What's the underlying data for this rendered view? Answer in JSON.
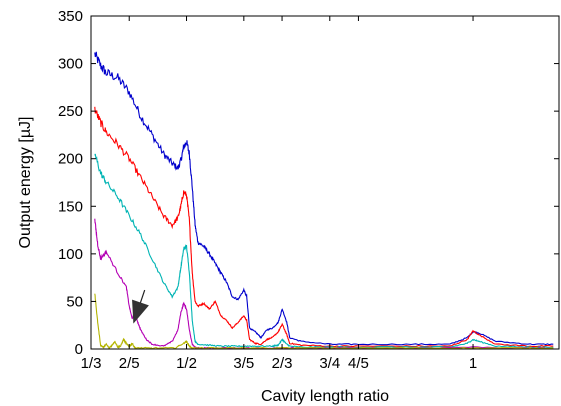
{
  "chart_data": {
    "type": "line",
    "xlabel": "Cavity length ratio",
    "ylabel": "Output energy [µJ]",
    "xlim": [
      0.3333,
      1.15
    ],
    "ylim": [
      0,
      350
    ],
    "grid": false,
    "legend": "none",
    "xticks": [
      {
        "value": 0.3333,
        "label": "1/3"
      },
      {
        "value": 0.4,
        "label": "2/5"
      },
      {
        "value": 0.5,
        "label": "1/2"
      },
      {
        "value": 0.6,
        "label": "3/5"
      },
      {
        "value": 0.6667,
        "label": "2/3"
      },
      {
        "value": 0.75,
        "label": "3/4"
      },
      {
        "value": 0.8,
        "label": "4/5"
      },
      {
        "value": 1.0,
        "label": "1"
      }
    ],
    "yticks": [
      {
        "value": 0,
        "label": "0"
      },
      {
        "value": 50,
        "label": "50"
      },
      {
        "value": 100,
        "label": "100"
      },
      {
        "value": 150,
        "label": "150"
      },
      {
        "value": 200,
        "label": "200"
      },
      {
        "value": 250,
        "label": "250"
      },
      {
        "value": 300,
        "label": "300"
      },
      {
        "value": 350,
        "label": "350"
      }
    ],
    "annotation": {
      "type": "arrow",
      "from": [
        0.427,
        62
      ],
      "to": [
        0.408,
        28
      ]
    },
    "series": [
      {
        "color": "#0000cc",
        "x": [
          0.34,
          0.35,
          0.36,
          0.38,
          0.4,
          0.42,
          0.44,
          0.46,
          0.475,
          0.485,
          0.49,
          0.495,
          0.5,
          0.505,
          0.51,
          0.515,
          0.52,
          0.53,
          0.54,
          0.55,
          0.56,
          0.57,
          0.58,
          0.59,
          0.6,
          0.605,
          0.61,
          0.62,
          0.63,
          0.64,
          0.65,
          0.66,
          0.667,
          0.675,
          0.68,
          0.7,
          0.75,
          0.8,
          0.9,
          0.96,
          0.99,
          1.0,
          1.01,
          1.04,
          1.1,
          1.14
        ],
        "y": [
          310,
          298,
          290,
          285,
          270,
          245,
          225,
          205,
          195,
          190,
          198,
          212,
          218,
          205,
          170,
          130,
          112,
          108,
          100,
          90,
          80,
          70,
          55,
          52,
          62,
          55,
          22,
          18,
          12,
          20,
          22,
          28,
          42,
          28,
          12,
          8,
          5,
          5,
          5,
          5,
          12,
          18,
          17,
          8,
          5,
          5
        ]
      },
      {
        "color": "#ff0000",
        "x": [
          0.34,
          0.35,
          0.36,
          0.38,
          0.4,
          0.42,
          0.44,
          0.46,
          0.475,
          0.485,
          0.49,
          0.495,
          0.5,
          0.505,
          0.51,
          0.515,
          0.52,
          0.53,
          0.54,
          0.55,
          0.56,
          0.57,
          0.58,
          0.59,
          0.6,
          0.605,
          0.61,
          0.62,
          0.63,
          0.64,
          0.65,
          0.66,
          0.667,
          0.675,
          0.68,
          0.7,
          0.75,
          0.8,
          0.9,
          0.96,
          0.99,
          1.0,
          1.01,
          1.04,
          1.1,
          1.14
        ],
        "y": [
          252,
          238,
          228,
          215,
          200,
          180,
          160,
          140,
          130,
          138,
          150,
          165,
          162,
          135,
          80,
          50,
          45,
          48,
          42,
          50,
          35,
          30,
          22,
          28,
          35,
          30,
          10,
          6,
          5,
          10,
          12,
          18,
          26,
          15,
          6,
          4,
          3,
          3,
          3,
          3,
          10,
          19,
          15,
          5,
          3,
          3
        ]
      },
      {
        "color": "#00b4b4",
        "x": [
          0.34,
          0.35,
          0.36,
          0.38,
          0.4,
          0.42,
          0.44,
          0.46,
          0.475,
          0.485,
          0.49,
          0.495,
          0.5,
          0.505,
          0.51,
          0.515,
          0.52,
          0.54,
          0.56,
          0.58,
          0.6,
          0.62,
          0.65,
          0.66,
          0.667,
          0.675,
          0.68,
          0.7,
          0.75,
          0.8,
          0.9,
          0.96,
          0.99,
          1.0,
          1.01,
          1.04,
          1.1,
          1.14
        ],
        "y": [
          205,
          185,
          175,
          160,
          140,
          120,
          95,
          70,
          55,
          65,
          85,
          105,
          108,
          80,
          30,
          8,
          5,
          4,
          3,
          3,
          3,
          3,
          3,
          4,
          10,
          5,
          3,
          2,
          2,
          2,
          2,
          2,
          6,
          10,
          8,
          3,
          2,
          2
        ]
      },
      {
        "color": "#b400b4",
        "x": [
          0.34,
          0.345,
          0.35,
          0.36,
          0.38,
          0.395,
          0.4,
          0.405,
          0.41,
          0.415,
          0.42,
          0.43,
          0.44,
          0.46,
          0.475,
          0.485,
          0.49,
          0.495,
          0.5,
          0.505,
          0.51,
          0.515,
          0.52,
          0.54,
          0.56,
          0.6,
          0.65,
          0.667,
          0.7,
          0.8,
          0.9,
          1.0,
          1.1,
          1.14
        ],
        "y": [
          135,
          110,
          95,
          102,
          80,
          65,
          45,
          32,
          38,
          28,
          20,
          10,
          5,
          3,
          8,
          20,
          38,
          48,
          42,
          20,
          5,
          2,
          1,
          1,
          1,
          1,
          1,
          1,
          1,
          1,
          1,
          2,
          1,
          1
        ]
      },
      {
        "color": "#b4b400",
        "x": [
          0.34,
          0.345,
          0.35,
          0.355,
          0.36,
          0.365,
          0.37,
          0.375,
          0.38,
          0.385,
          0.39,
          0.395,
          0.4,
          0.405,
          0.41,
          0.42,
          0.44,
          0.48,
          0.495,
          0.5,
          0.505,
          0.51,
          0.55,
          0.6,
          0.7,
          0.8,
          0.9,
          1.0,
          1.1,
          1.14
        ],
        "y": [
          58,
          28,
          4,
          2,
          5,
          1,
          4,
          8,
          2,
          3,
          10,
          6,
          2,
          6,
          1,
          1,
          1,
          1,
          6,
          8,
          3,
          1,
          1,
          1,
          1,
          1,
          1,
          1,
          1,
          1
        ]
      }
    ]
  }
}
